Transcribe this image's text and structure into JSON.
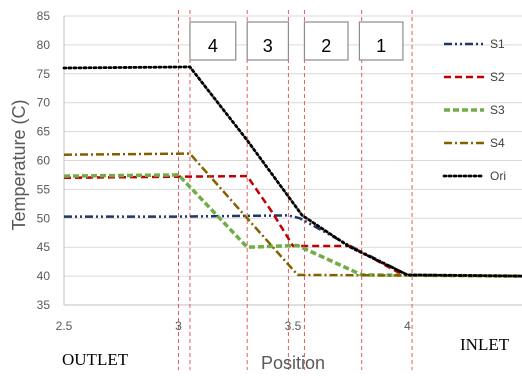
{
  "chart_data": {
    "type": "line",
    "xlabel": "Position",
    "ylabel": "Temperature (C)",
    "xlim": [
      2.5,
      4.5
    ],
    "ylim": [
      35,
      85
    ],
    "x_ticks": [
      "2.5",
      "3",
      "3.5",
      "4"
    ],
    "y_ticks": [
      "35",
      "40",
      "45",
      "50",
      "55",
      "60",
      "65",
      "70",
      "75",
      "80",
      "85"
    ],
    "grid": "horizontal",
    "legend_position": "right",
    "side_labels": {
      "left": "OUTLET",
      "right": "INLET"
    },
    "zone_boxes": [
      {
        "label": "4",
        "x_range": [
          3.05,
          3.25
        ]
      },
      {
        "label": "3",
        "x_range": [
          3.3,
          3.48
        ]
      },
      {
        "label": "2",
        "x_range": [
          3.55,
          3.74
        ]
      },
      {
        "label": "1",
        "x_range": [
          3.79,
          3.98
        ]
      }
    ],
    "divider_lines_x": [
      3.0,
      3.05,
      3.3,
      3.48,
      3.55,
      3.8,
      4.02
    ],
    "series": [
      {
        "name": "S1",
        "color": "#1f3864",
        "dash": "dashdot-dot",
        "points": [
          [
            2.5,
            50.3
          ],
          [
            3.0,
            50.3
          ],
          [
            3.48,
            50.5
          ],
          [
            3.53,
            50.0
          ],
          [
            3.75,
            45.2
          ],
          [
            4.0,
            40.2
          ],
          [
            4.5,
            40.0
          ]
        ]
      },
      {
        "name": "S2",
        "color": "#c00000",
        "dash": "dash",
        "points": [
          [
            2.5,
            57.0
          ],
          [
            3.0,
            57.2
          ],
          [
            3.3,
            57.3
          ],
          [
            3.41,
            51.0
          ],
          [
            3.5,
            45.2
          ],
          [
            3.75,
            45.2
          ],
          [
            3.98,
            40.2
          ],
          [
            4.5,
            40.0
          ]
        ]
      },
      {
        "name": "S3",
        "color": "#70ad47",
        "dash": "dash-thick",
        "points": [
          [
            2.5,
            57.3
          ],
          [
            3.0,
            57.5
          ],
          [
            3.3,
            45.0
          ],
          [
            3.52,
            45.3
          ],
          [
            3.8,
            40.2
          ],
          [
            4.5,
            40.0
          ]
        ]
      },
      {
        "name": "S4",
        "color": "#806000",
        "dash": "dashdot",
        "points": [
          [
            2.5,
            61.0
          ],
          [
            3.05,
            61.2
          ],
          [
            3.3,
            50.0
          ],
          [
            3.52,
            40.2
          ],
          [
            4.5,
            40.0
          ]
        ]
      },
      {
        "name": "Ori",
        "color": "#000000",
        "dash": "dot",
        "points": [
          [
            2.5,
            76.0
          ],
          [
            3.05,
            76.2
          ],
          [
            3.3,
            63.5
          ],
          [
            3.54,
            50.5
          ],
          [
            3.75,
            45.0
          ],
          [
            4.0,
            40.2
          ],
          [
            4.5,
            40.0
          ]
        ]
      }
    ]
  }
}
